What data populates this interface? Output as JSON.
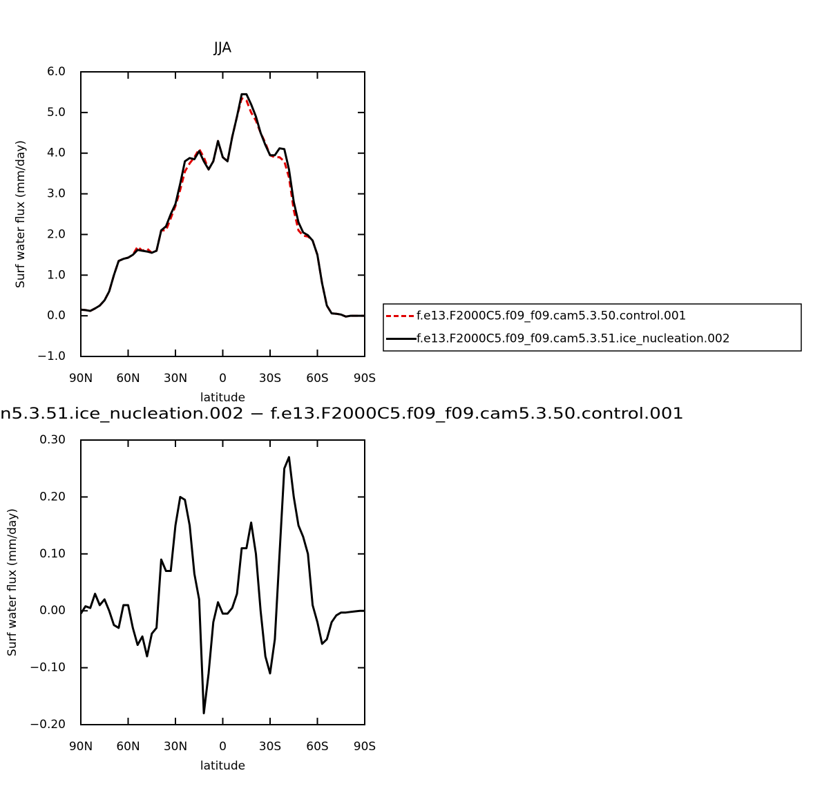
{
  "chart_data": [
    {
      "type": "line",
      "title": "JJA",
      "xlabel": "latitude",
      "ylabel": "Surf water flux (mm/day)",
      "x": [
        90,
        87,
        84,
        81,
        78,
        75,
        72,
        69,
        66,
        63,
        60,
        57,
        54,
        51,
        48,
        45,
        42,
        39,
        36,
        33,
        30,
        27,
        24,
        21,
        18,
        15,
        12,
        9,
        6,
        3,
        0,
        -3,
        -6,
        -9,
        -12,
        -15,
        -18,
        -21,
        -24,
        -27,
        -30,
        -33,
        -36,
        -39,
        -42,
        -45,
        -48,
        -51,
        -54,
        -57,
        -60,
        -63,
        -66,
        -69,
        -72,
        -75,
        -78,
        -81,
        -84,
        -87,
        -90
      ],
      "xlim": [
        90,
        -90
      ],
      "xticks": [
        {
          "value": 90,
          "label": "90N"
        },
        {
          "value": 60,
          "label": "60N"
        },
        {
          "value": 30,
          "label": "30N"
        },
        0,
        {
          "value": -30,
          "label": "30S"
        },
        {
          "value": -60,
          "label": "60S"
        },
        {
          "value": -90,
          "label": "90S"
        }
      ],
      "ylim": [
        -1,
        6
      ],
      "yticks": [
        {
          "value": -1,
          "label": "−1.0"
        },
        {
          "value": 0,
          "label": "0.0"
        },
        {
          "value": 1,
          "label": "1.0"
        },
        {
          "value": 2,
          "label": "2.0"
        },
        {
          "value": 3,
          "label": "3.0"
        },
        {
          "value": 4,
          "label": "4.0"
        },
        {
          "value": 5,
          "label": "5.0"
        },
        {
          "value": 6,
          "label": "6.0"
        }
      ],
      "legend": "right",
      "series": [
        {
          "name": "f.e13.F2000C5.f09_f09.cam5.3.50.control.001",
          "color": "#e00000",
          "linestyle": "dashed",
          "values": [
            0.15,
            0.14,
            0.12,
            0.18,
            0.25,
            0.38,
            0.6,
            1.0,
            1.35,
            1.4,
            1.43,
            1.5,
            1.7,
            1.6,
            1.65,
            1.55,
            1.6,
            2.1,
            2.1,
            2.4,
            2.7,
            3.1,
            3.55,
            3.75,
            3.9,
            4.1,
            3.9,
            3.6,
            3.8,
            4.3,
            3.9,
            3.8,
            4.4,
            4.9,
            5.35,
            5.3,
            5.0,
            4.8,
            4.5,
            4.25,
            3.95,
            3.9,
            3.9,
            3.8,
            3.4,
            2.6,
            2.1,
            1.97,
            1.95,
            1.85,
            1.5,
            0.8,
            0.25,
            0.06,
            0.05,
            0.03,
            -0.02,
            0,
            0,
            0,
            0
          ]
        },
        {
          "name": "f.e13.F2000C5.f09_f09.cam5.3.51.ice_nucleation.002",
          "color": "#000000",
          "linestyle": "solid",
          "values": [
            0.15,
            0.14,
            0.12,
            0.18,
            0.25,
            0.38,
            0.6,
            1.0,
            1.35,
            1.4,
            1.43,
            1.5,
            1.62,
            1.6,
            1.58,
            1.55,
            1.6,
            2.1,
            2.2,
            2.5,
            2.75,
            3.25,
            3.8,
            3.88,
            3.85,
            4.05,
            3.8,
            3.6,
            3.8,
            4.3,
            3.9,
            3.8,
            4.4,
            4.9,
            5.45,
            5.45,
            5.2,
            4.9,
            4.5,
            4.2,
            3.95,
            3.95,
            4.12,
            4.1,
            3.6,
            2.8,
            2.3,
            2.05,
            1.98,
            1.85,
            1.5,
            0.8,
            0.25,
            0.06,
            0.05,
            0.03,
            -0.02,
            0,
            0,
            0,
            0
          ]
        }
      ]
    },
    {
      "type": "line",
      "title": "n5.3.51.ice_nucleation.002 − f.e13.F2000C5.f09_f09.cam5.3.50.control.001",
      "xlabel": "latitude",
      "ylabel": "Surf water flux (mm/day)",
      "x": [
        90,
        87,
        84,
        81,
        78,
        75,
        72,
        69,
        66,
        63,
        60,
        57,
        54,
        51,
        48,
        45,
        42,
        39,
        36,
        33,
        30,
        27,
        24,
        21,
        18,
        15,
        12,
        9,
        6,
        3,
        0,
        -3,
        -6,
        -9,
        -12,
        -15,
        -18,
        -21,
        -24,
        -27,
        -30,
        -33,
        -36,
        -39,
        -42,
        -45,
        -48,
        -51,
        -54,
        -57,
        -60,
        -63,
        -66,
        -69,
        -72,
        -75,
        -78,
        -81,
        -84,
        -87,
        -90
      ],
      "xlim": [
        90,
        -90
      ],
      "xticks": [
        {
          "value": 90,
          "label": "90N"
        },
        {
          "value": 60,
          "label": "60N"
        },
        {
          "value": 30,
          "label": "30N"
        },
        0,
        {
          "value": -30,
          "label": "30S"
        },
        {
          "value": -60,
          "label": "60S"
        },
        {
          "value": -90,
          "label": "90S"
        }
      ],
      "ylim": [
        -0.2,
        0.3
      ],
      "yticks": [
        {
          "value": -0.2,
          "label": "−0.20"
        },
        {
          "value": -0.1,
          "label": "−0.10"
        },
        {
          "value": 0,
          "label": "0.00"
        },
        {
          "value": 0.1,
          "label": "0.10"
        },
        {
          "value": 0.2,
          "label": "0.20"
        },
        {
          "value": 0.3,
          "label": "0.30"
        }
      ],
      "series": [
        {
          "color": "#000000",
          "linestyle": "solid",
          "values": [
            -0.005,
            0.008,
            0.005,
            0.03,
            0.01,
            0.02,
            0.0,
            -0.025,
            -0.03,
            0.01,
            0.01,
            -0.03,
            -0.06,
            -0.045,
            -0.08,
            -0.04,
            -0.03,
            0.09,
            0.07,
            0.07,
            0.15,
            0.2,
            0.195,
            0.15,
            0.065,
            0.02,
            -0.18,
            -0.11,
            -0.02,
            0.015,
            -0.005,
            -0.005,
            0.005,
            0.03,
            0.11,
            0.11,
            0.155,
            0.1,
            0.0,
            -0.08,
            -0.11,
            -0.05,
            0.1,
            0.25,
            0.27,
            0.2,
            0.15,
            0.13,
            0.1,
            0.01,
            -0.02,
            -0.058,
            -0.05,
            -0.02,
            -0.008,
            -0.003,
            -0.003,
            -0.002,
            -0.001,
            0.0,
            0.0
          ]
        }
      ]
    }
  ]
}
